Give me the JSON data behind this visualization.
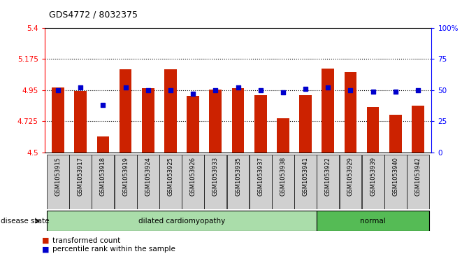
{
  "title": "GDS4772 / 8032375",
  "samples": [
    "GSM1053915",
    "GSM1053917",
    "GSM1053918",
    "GSM1053919",
    "GSM1053924",
    "GSM1053925",
    "GSM1053926",
    "GSM1053933",
    "GSM1053935",
    "GSM1053937",
    "GSM1053938",
    "GSM1053941",
    "GSM1053922",
    "GSM1053929",
    "GSM1053939",
    "GSM1053940",
    "GSM1053942"
  ],
  "bar_values": [
    4.97,
    4.945,
    4.615,
    5.1,
    4.965,
    5.1,
    4.91,
    4.955,
    4.965,
    4.915,
    4.745,
    4.915,
    5.105,
    5.08,
    4.83,
    4.77,
    4.84
  ],
  "dot_values": [
    50,
    52,
    38,
    52,
    50,
    50,
    47,
    50,
    52,
    50,
    48,
    51,
    52,
    50,
    49,
    49,
    50
  ],
  "disease_groups": [
    {
      "label": "dilated cardiomyopathy",
      "start": 0,
      "end": 12,
      "color": "#aaddaa"
    },
    {
      "label": "normal",
      "start": 12,
      "end": 17,
      "color": "#55bb55"
    }
  ],
  "ylim_left": [
    4.5,
    5.4
  ],
  "ylim_right": [
    0,
    100
  ],
  "yticks_left": [
    4.5,
    4.725,
    4.95,
    5.175,
    5.4
  ],
  "yticks_right": [
    0,
    25,
    50,
    75,
    100
  ],
  "ytick_labels_left": [
    "4.5",
    "4.725",
    "4.95",
    "5.175",
    "5.4"
  ],
  "ytick_labels_right": [
    "0",
    "25",
    "50",
    "75",
    "100%"
  ],
  "hlines": [
    4.725,
    4.95,
    5.175
  ],
  "bar_color": "#cc2200",
  "dot_color": "#0000cc",
  "bar_width": 0.55,
  "legend_bar_label": "transformed count",
  "legend_dot_label": "percentile rank within the sample",
  "disease_state_label": "disease state",
  "plot_bg_color": "#ffffff",
  "sample_box_color": "#d0d0d0"
}
